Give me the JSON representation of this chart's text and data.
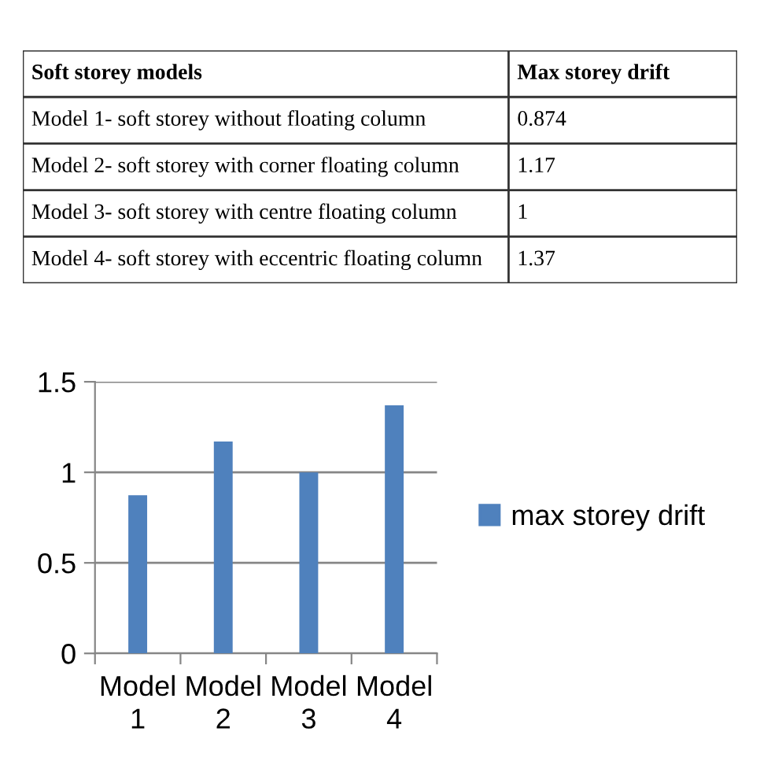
{
  "chart_data": [
    {
      "type": "other",
      "annotations": [
        "Soft storey models",
        "Max storey drift",
        "Model 1- soft storey without floating column",
        "0.874",
        "Model 2- soft storey with corner floating column",
        "1.17",
        "Model 3- soft storey with centre floating column",
        "1",
        "Model 4- soft storey with eccentric floating column",
        "1.37"
      ]
    },
    {
      "type": "bar",
      "categories": [
        "Model 1",
        "Model 2",
        "Model 3",
        "Model 4"
      ],
      "series": [
        {
          "name": "max storey drift",
          "color": "#4f81bd",
          "values": [
            0.874,
            1.17,
            1,
            1.37
          ]
        }
      ],
      "ylim": [
        0,
        1.5
      ],
      "yticks": [
        0,
        0.5,
        1,
        1.5
      ],
      "grid": "y",
      "legend": "right"
    }
  ]
}
